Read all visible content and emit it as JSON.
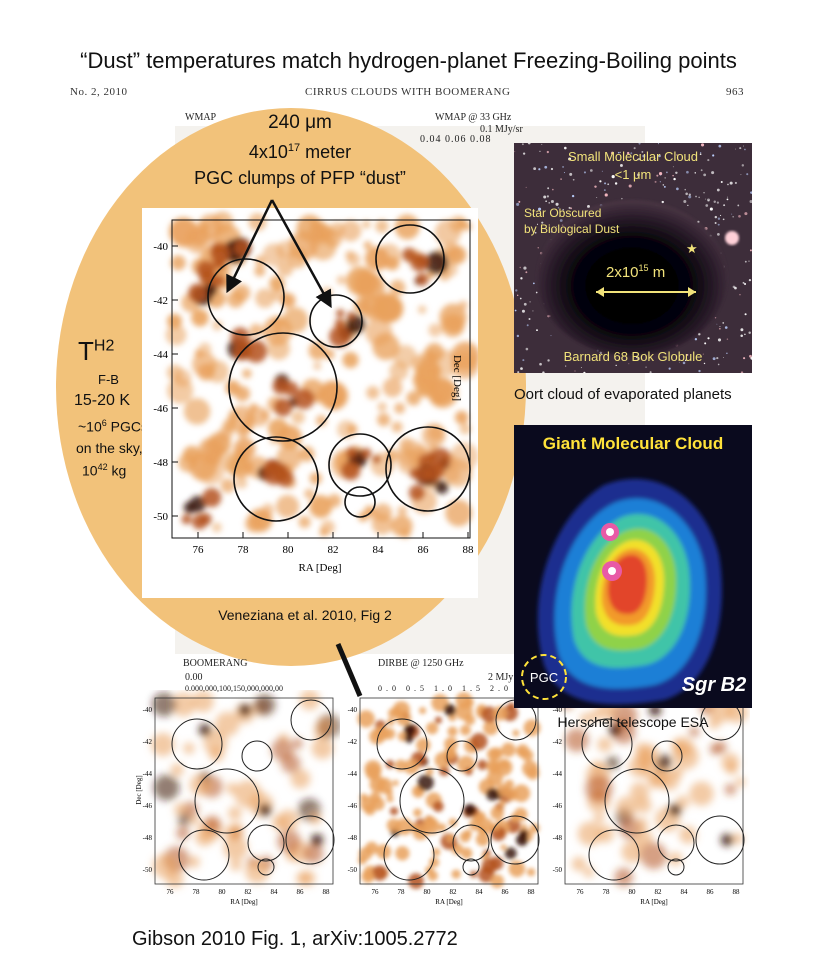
{
  "title": "“Dust” temperatures match hydrogen-planet Freezing-Boiling points",
  "page_header": {
    "issue": "No. 2, 2010",
    "running_title": "CIRRUS CLOUDS WITH BOOMERANG",
    "page_number": "963"
  },
  "background_labels": {
    "wmap_left": "WMAP",
    "wmap_right": "WMAP @ 33 GHz",
    "boomerang": "BOOMERANG",
    "dirbe": "DIRBE @ 1250 GHz",
    "scale_unit": "0.1 MJy/sr",
    "scale_unit_b": "2 MJy",
    "scale_zero": "0.00",
    "scale_ticks": "0.000,000,100,150,000,000,00",
    "dirbe_ticks": [
      "0.0",
      "0.5",
      "1.0",
      "1.5",
      "2.0"
    ],
    "top_scale_ticks": [
      "0.04",
      "0.06",
      "0.08"
    ],
    "ra_axis_label": "RA [Deg]",
    "dec_axis_label": "Dec [Deg]"
  },
  "oval": {
    "wavelength": "240 μm",
    "size_line": "4x10",
    "size_exp": "17",
    "size_unit": " meter",
    "pgc_line": "PGC clumps of PFP “dust”",
    "temp_symbol": "T",
    "temp_sup": "H2",
    "temp_sub": "F-B",
    "temp_range": "15-20 K",
    "count_prefix": "~10",
    "count_exp": "6",
    "count_suffix": " PGCs",
    "sky_line": "on the sky,",
    "mass_prefix": "10",
    "mass_exp": "42",
    "mass_suffix": " kg",
    "citation": "Veneziana et al. 2010, Fig 2"
  },
  "main_plot": {
    "x_ticks": [
      "76",
      "78",
      "80",
      "82",
      "84",
      "86",
      "88"
    ],
    "y_ticks": [
      "-40",
      "-42",
      "-44",
      "-46",
      "-48",
      "-50"
    ],
    "x_label": "RA [Deg]",
    "y_label": "Dec [Deg]"
  },
  "small_plot": {
    "x_ticks": [
      "76",
      "78",
      "80",
      "82",
      "84",
      "86",
      "88"
    ],
    "y_ticks": [
      "-40",
      "-42",
      "-44",
      "-46",
      "-48",
      "-50"
    ],
    "x_label": "RA [Deg]",
    "y_label": "Dec [Deg]"
  },
  "bok_image": {
    "title_line1": "Small Molecular Cloud",
    "title_line2": "<1 μm",
    "star_line1": "Star Obscured",
    "star_line2": "by Biological Dust",
    "scale_prefix": "2x10",
    "scale_exp": "15",
    "scale_unit": " m",
    "name": "Barnard 68 Bok Globule",
    "caption": "Oort cloud of evaporated planets"
  },
  "gmc_image": {
    "title": "Giant Molecular Cloud",
    "pgc_label": "PGC",
    "name": "Sgr B2",
    "caption": "Herschel telescope ESA"
  },
  "footer": "Gibson 2010 Fig. 1, arXiv:1005.2772",
  "colors": {
    "oval_fill": "#f2c27a",
    "heat_dark": "#3a1408",
    "heat_mid": "#b4521d",
    "heat_light": "#e9a15c",
    "gmc_title": "#ffe23a",
    "bok_text": "#f1e27a"
  }
}
